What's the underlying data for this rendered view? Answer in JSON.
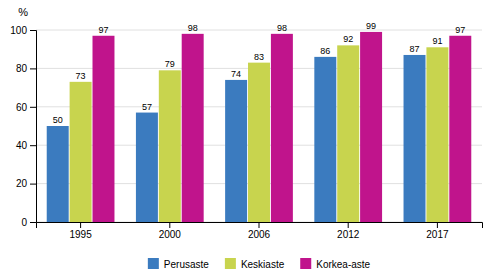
{
  "chart_data": {
    "type": "bar",
    "ylabel": "%",
    "categories": [
      "1995",
      "2000",
      "2006",
      "2012",
      "2017"
    ],
    "series": [
      {
        "name": "Perusaste",
        "color": "#3b7bbf",
        "values": [
          50,
          57,
          74,
          86,
          87
        ]
      },
      {
        "name": "Keskiaste",
        "color": "#c8d44e",
        "values": [
          73,
          79,
          83,
          92,
          91
        ]
      },
      {
        "name": "Korkea-aste",
        "color": "#c0148c",
        "values": [
          97,
          98,
          98,
          99,
          97
        ]
      }
    ],
    "ylim": [
      0,
      100
    ],
    "yticks": [
      0,
      20,
      40,
      60,
      80,
      100
    ],
    "grid": true,
    "legend": "bottom",
    "data_labels": true
  }
}
